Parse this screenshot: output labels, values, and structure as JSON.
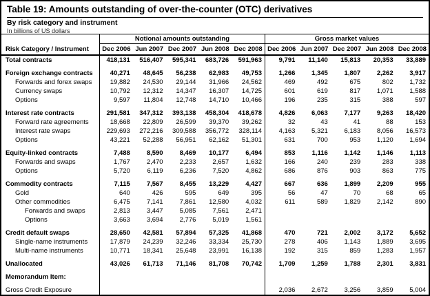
{
  "title": "Table 19: Amounts outstanding of over-the-counter (OTC) derivatives",
  "subtitle": "By risk category and instrument",
  "unit_note": "In billions of US dollars",
  "row_header": "Risk Category / Instrument",
  "column_groups": [
    {
      "label": "Notional amounts outstanding",
      "columns": [
        "Dec 2006",
        "Jun 2007",
        "Dec 2007",
        "Jun 2008",
        "Dec 2008"
      ]
    },
    {
      "label": "Gross market values",
      "columns": [
        "Dec 2006",
        "Jun 2007",
        "Dec 2007",
        "Jun 2008",
        "Dec 2008"
      ]
    }
  ],
  "rows": [
    {
      "label": "Total contracts",
      "indent": 0,
      "bold": true,
      "gap_before": false,
      "notional": [
        "418,131",
        "516,407",
        "595,341",
        "683,726",
        "591,963"
      ],
      "gross": [
        "9,791",
        "11,140",
        "15,813",
        "20,353",
        "33,889"
      ]
    },
    {
      "label": "Foreign exchange contracts",
      "indent": 0,
      "bold": true,
      "gap_before": true,
      "notional": [
        "40,271",
        "48,645",
        "56,238",
        "62,983",
        "49,753"
      ],
      "gross": [
        "1,266",
        "1,345",
        "1,807",
        "2,262",
        "3,917"
      ]
    },
    {
      "label": "Forwards and forex swaps",
      "indent": 1,
      "bold": false,
      "gap_before": false,
      "notional": [
        "19,882",
        "24,530",
        "29,144",
        "31,966",
        "24,562"
      ],
      "gross": [
        "469",
        "492",
        "675",
        "802",
        "1,732"
      ]
    },
    {
      "label": "Currency swaps",
      "indent": 1,
      "bold": false,
      "gap_before": false,
      "notional": [
        "10,792",
        "12,312",
        "14,347",
        "16,307",
        "14,725"
      ],
      "gross": [
        "601",
        "619",
        "817",
        "1,071",
        "1,588"
      ]
    },
    {
      "label": "Options",
      "indent": 1,
      "bold": false,
      "gap_before": false,
      "notional": [
        "9,597",
        "11,804",
        "12,748",
        "14,710",
        "10,466"
      ],
      "gross": [
        "196",
        "235",
        "315",
        "388",
        "597"
      ]
    },
    {
      "label": "Interest rate contracts",
      "indent": 0,
      "bold": true,
      "gap_before": true,
      "notional": [
        "291,581",
        "347,312",
        "393,138",
        "458,304",
        "418,678"
      ],
      "gross": [
        "4,826",
        "6,063",
        "7,177",
        "9,263",
        "18,420"
      ]
    },
    {
      "label": "Forward rate agreements",
      "indent": 1,
      "bold": false,
      "gap_before": false,
      "notional": [
        "18,668",
        "22,809",
        "26,599",
        "39,370",
        "39,262"
      ],
      "gross": [
        "32",
        "43",
        "41",
        "88",
        "153"
      ]
    },
    {
      "label": "Interest rate swaps",
      "indent": 1,
      "bold": false,
      "gap_before": false,
      "notional": [
        "229,693",
        "272,216",
        "309,588",
        "356,772",
        "328,114"
      ],
      "gross": [
        "4,163",
        "5,321",
        "6,183",
        "8,056",
        "16,573"
      ]
    },
    {
      "label": "Options",
      "indent": 1,
      "bold": false,
      "gap_before": false,
      "notional": [
        "43,221",
        "52,288",
        "56,951",
        "62,162",
        "51,301"
      ],
      "gross": [
        "631",
        "700",
        "953",
        "1,120",
        "1,694"
      ]
    },
    {
      "label": "Equity-linked contracts",
      "indent": 0,
      "bold": true,
      "gap_before": true,
      "notional": [
        "7,488",
        "8,590",
        "8,469",
        "10,177",
        "6,494"
      ],
      "gross": [
        "853",
        "1,116",
        "1,142",
        "1,146",
        "1,113"
      ]
    },
    {
      "label": "Forwards and swaps",
      "indent": 1,
      "bold": false,
      "gap_before": false,
      "notional": [
        "1,767",
        "2,470",
        "2,233",
        "2,657",
        "1,632"
      ],
      "gross": [
        "166",
        "240",
        "239",
        "283",
        "338"
      ]
    },
    {
      "label": "Options",
      "indent": 1,
      "bold": false,
      "gap_before": false,
      "notional": [
        "5,720",
        "6,119",
        "6,236",
        "7,520",
        "4,862"
      ],
      "gross": [
        "686",
        "876",
        "903",
        "863",
        "775"
      ]
    },
    {
      "label": "Commodity contracts",
      "indent": 0,
      "bold": true,
      "gap_before": true,
      "notional": [
        "7,115",
        "7,567",
        "8,455",
        "13,229",
        "4,427"
      ],
      "gross": [
        "667",
        "636",
        "1,899",
        "2,209",
        "955"
      ]
    },
    {
      "label": "Gold",
      "indent": 1,
      "bold": false,
      "gap_before": false,
      "notional": [
        "640",
        "426",
        "595",
        "649",
        "395"
      ],
      "gross": [
        "56",
        "47",
        "70",
        "68",
        "65"
      ]
    },
    {
      "label": "Other commodities",
      "indent": 1,
      "bold": false,
      "gap_before": false,
      "notional": [
        "6,475",
        "7,141",
        "7,861",
        "12,580",
        "4,032"
      ],
      "gross": [
        "611",
        "589",
        "1,829",
        "2,142",
        "890"
      ]
    },
    {
      "label": "Forwards and swaps",
      "indent": 2,
      "bold": false,
      "gap_before": false,
      "notional": [
        "2,813",
        "3,447",
        "5,085",
        "7,561",
        "2,471"
      ],
      "gross": [
        "",
        "",
        "",
        "",
        ""
      ]
    },
    {
      "label": "Options",
      "indent": 2,
      "bold": false,
      "gap_before": false,
      "notional": [
        "3,663",
        "3,694",
        "2,776",
        "5,019",
        "1,561"
      ],
      "gross": [
        "",
        "",
        "",
        "",
        ""
      ]
    },
    {
      "label": "Credit default swaps",
      "indent": 0,
      "bold": true,
      "gap_before": true,
      "notional": [
        "28,650",
        "42,581",
        "57,894",
        "57,325",
        "41,868"
      ],
      "gross": [
        "470",
        "721",
        "2,002",
        "3,172",
        "5,652"
      ]
    },
    {
      "label": "Single-name instruments",
      "indent": 1,
      "bold": false,
      "gap_before": false,
      "notional": [
        "17,879",
        "24,239",
        "32,246",
        "33,334",
        "25,730"
      ],
      "gross": [
        "278",
        "406",
        "1,143",
        "1,889",
        "3,695"
      ]
    },
    {
      "label": "Multi-name instruments",
      "indent": 1,
      "bold": false,
      "gap_before": false,
      "notional": [
        "10,771",
        "18,341",
        "25,648",
        "23,991",
        "16,138"
      ],
      "gross": [
        "192",
        "315",
        "859",
        "1,283",
        "1,957"
      ]
    },
    {
      "label": "Unallocated",
      "indent": 0,
      "bold": true,
      "gap_before": true,
      "notional": [
        "43,026",
        "61,713",
        "71,146",
        "81,708",
        "70,742"
      ],
      "gross": [
        "1,709",
        "1,259",
        "1,788",
        "2,301",
        "3,831"
      ]
    },
    {
      "label": "Memorandum Item:",
      "indent": 0,
      "bold": true,
      "gap_before": true,
      "notional": [
        "",
        "",
        "",
        "",
        ""
      ],
      "gross": [
        "",
        "",
        "",
        "",
        ""
      ]
    },
    {
      "label": "Gross Credit Exposure",
      "indent": 0,
      "bold": false,
      "gap_before": true,
      "notional": [
        "",
        "",
        "",
        "",
        ""
      ],
      "gross": [
        "2,036",
        "2,672",
        "3,256",
        "3,859",
        "5,004"
      ]
    }
  ]
}
